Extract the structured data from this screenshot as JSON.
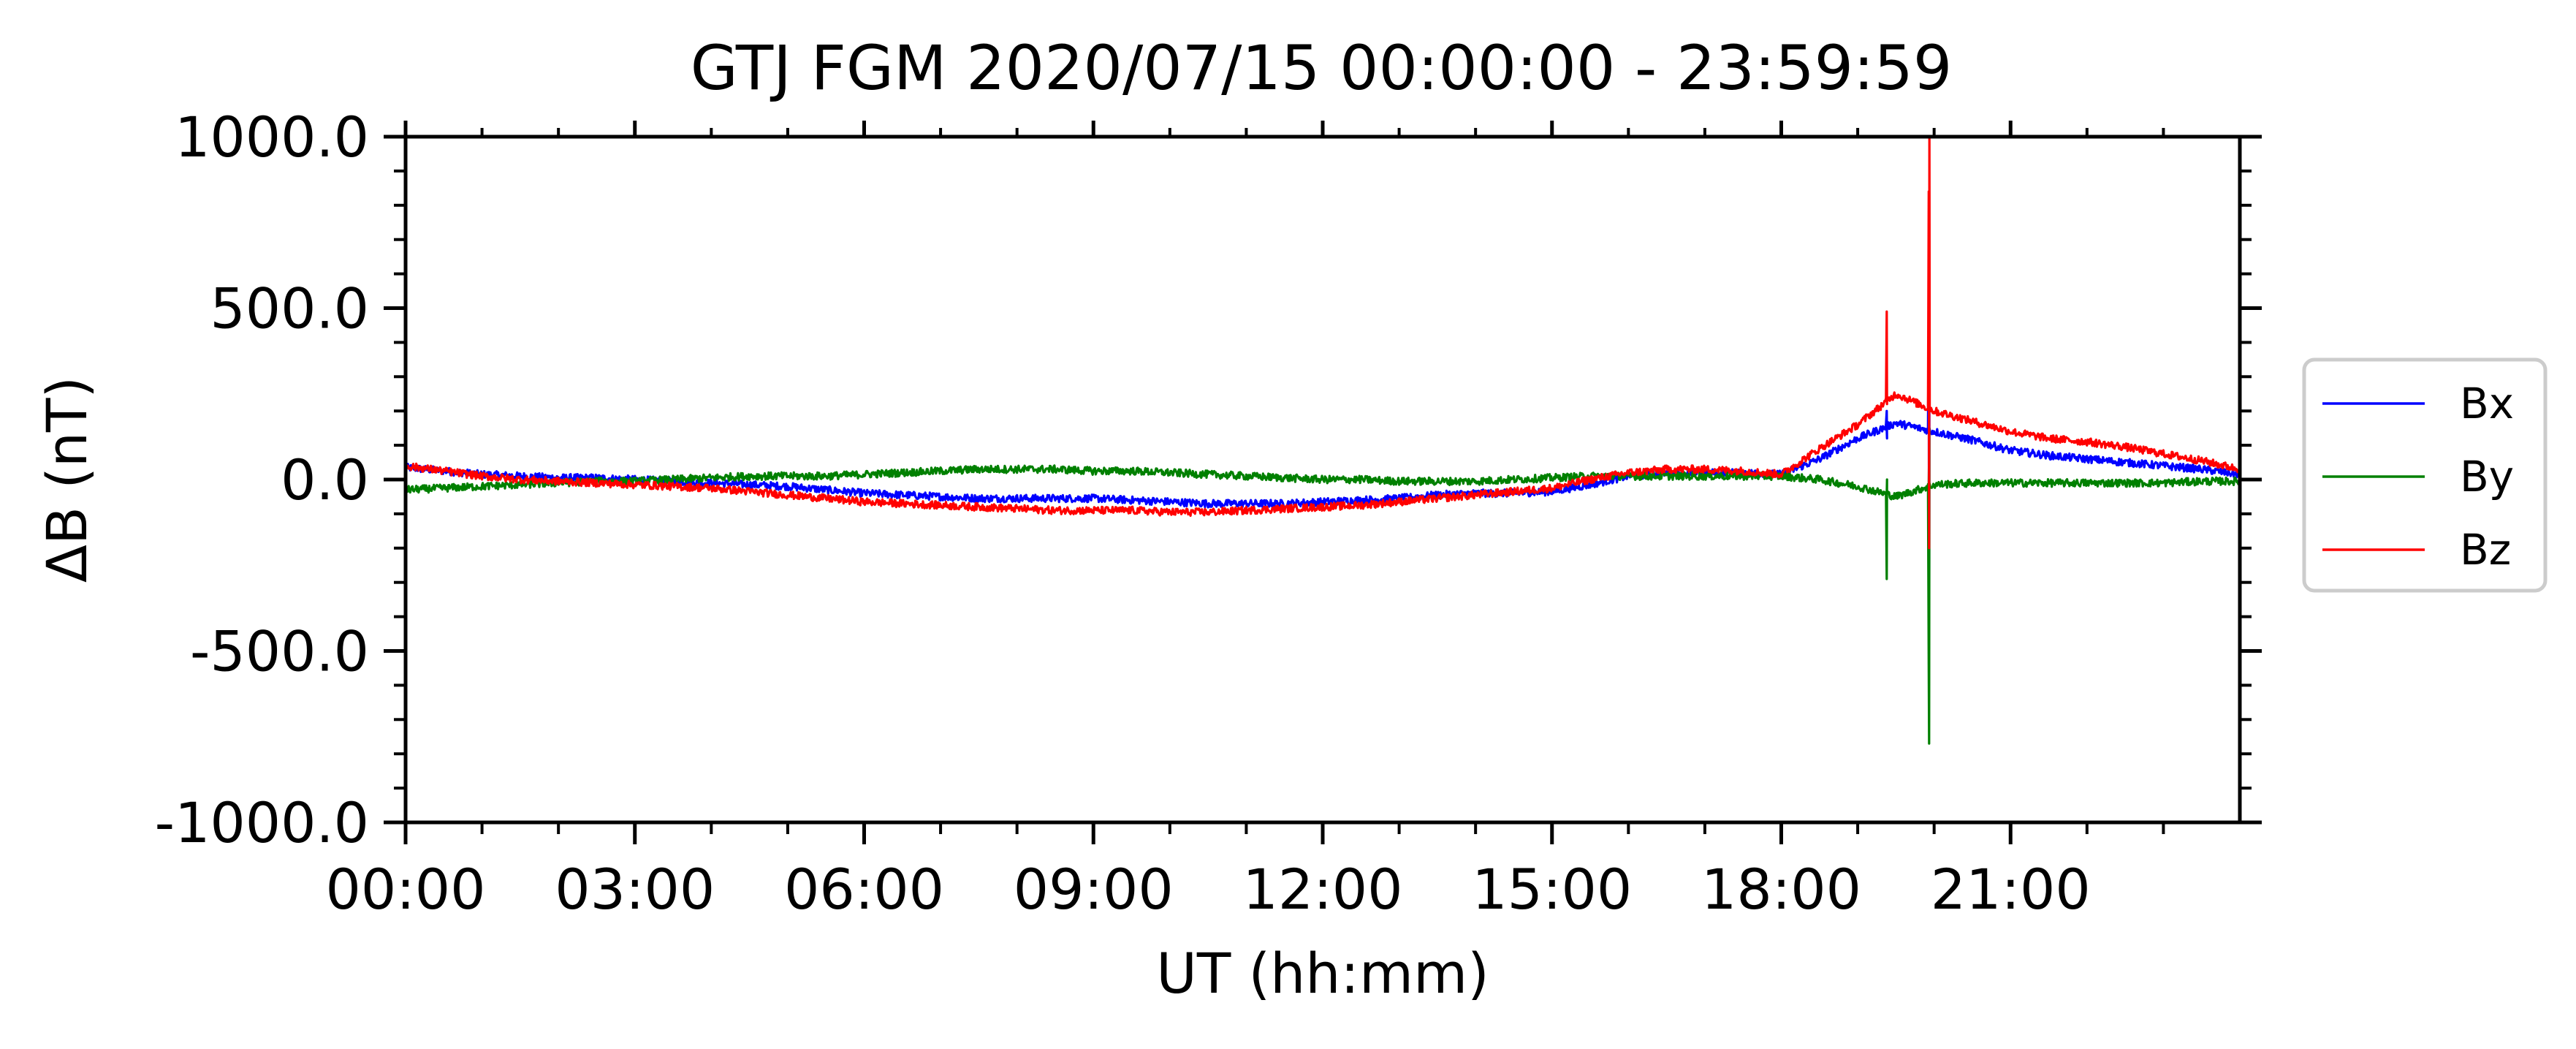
{
  "chart_data": {
    "type": "line",
    "title": "GTJ FGM  2020/07/15 00:00:00 - 23:59:59",
    "xlabel": "UT (hh:mm)",
    "ylabel": "ΔB (nT)",
    "xlim": [
      0,
      24
    ],
    "ylim": [
      -1000,
      1000
    ],
    "x_ticks": [
      0,
      3,
      6,
      9,
      12,
      15,
      18,
      21
    ],
    "x_tick_labels": [
      "00:00",
      "03:00",
      "06:00",
      "09:00",
      "12:00",
      "15:00",
      "18:00",
      "21:00"
    ],
    "y_ticks": [
      1000,
      500,
      0,
      -500,
      -1000
    ],
    "y_tick_labels": [
      "1000.0",
      "500.0",
      "0.0",
      "-500.0",
      "-1000.0"
    ],
    "legend_position": "outside-right",
    "x": [
      0,
      0.5,
      1,
      1.5,
      2,
      2.5,
      3,
      3.5,
      4,
      4.5,
      5,
      5.5,
      6,
      6.5,
      7,
      7.5,
      8,
      8.5,
      9,
      9.5,
      10,
      10.5,
      11,
      11.5,
      12,
      12.5,
      13,
      13.5,
      14,
      14.5,
      15,
      15.5,
      16,
      16.5,
      17,
      17.5,
      18,
      18.5,
      19,
      19.5,
      20,
      20.5,
      21,
      21.5,
      22,
      22.5,
      23,
      23.5,
      24
    ],
    "series": [
      {
        "name": "Bx",
        "color": "#0000ff",
        "values": [
          35,
          25,
          15,
          10,
          5,
          5,
          0,
          -5,
          -10,
          -15,
          -20,
          -30,
          -40,
          -45,
          -50,
          -55,
          -55,
          -55,
          -55,
          -60,
          -65,
          -70,
          -70,
          -70,
          -65,
          -60,
          -55,
          -45,
          -40,
          -40,
          -35,
          -15,
          10,
          20,
          20,
          20,
          15,
          60,
          120,
          165,
          140,
          115,
          85,
          70,
          60,
          50,
          40,
          30,
          15
        ],
        "spikes": [
          {
            "x": 19.38,
            "values": [
              200,
              120
            ]
          },
          {
            "x": 19.93,
            "values": [
              480,
              -500,
              260
            ]
          }
        ]
      },
      {
        "name": "By",
        "color": "#008000",
        "values": [
          -30,
          -25,
          -20,
          -15,
          -10,
          -5,
          -5,
          0,
          5,
          10,
          10,
          10,
          15,
          20,
          25,
          30,
          30,
          30,
          25,
          25,
          20,
          15,
          10,
          5,
          0,
          0,
          -5,
          -5,
          -5,
          0,
          5,
          10,
          10,
          10,
          10,
          10,
          10,
          0,
          -20,
          -50,
          -15,
          -10,
          -10,
          -10,
          -10,
          -10,
          -10,
          -5,
          -5
        ],
        "spikes": [
          {
            "x": 19.38,
            "values": [
              -290,
              0
            ]
          },
          {
            "x": 19.93,
            "values": [
              -540,
              -770,
              150
            ]
          }
        ]
      },
      {
        "name": "Bz",
        "color": "#ff0000",
        "values": [
          40,
          25,
          10,
          0,
          -5,
          -10,
          -15,
          -20,
          -25,
          -35,
          -45,
          -55,
          -65,
          -70,
          -75,
          -80,
          -85,
          -90,
          -90,
          -90,
          -95,
          -95,
          -90,
          -85,
          -80,
          -75,
          -65,
          -55,
          -45,
          -35,
          -25,
          0,
          20,
          30,
          30,
          25,
          15,
          90,
          160,
          250,
          200,
          170,
          140,
          120,
          110,
          95,
          75,
          55,
          30
        ],
        "spikes": [
          {
            "x": 19.38,
            "values": [
              490,
              220
            ]
          },
          {
            "x": 19.93,
            "values": [
              840,
              -200,
              1000,
              200
            ]
          }
        ]
      }
    ]
  }
}
